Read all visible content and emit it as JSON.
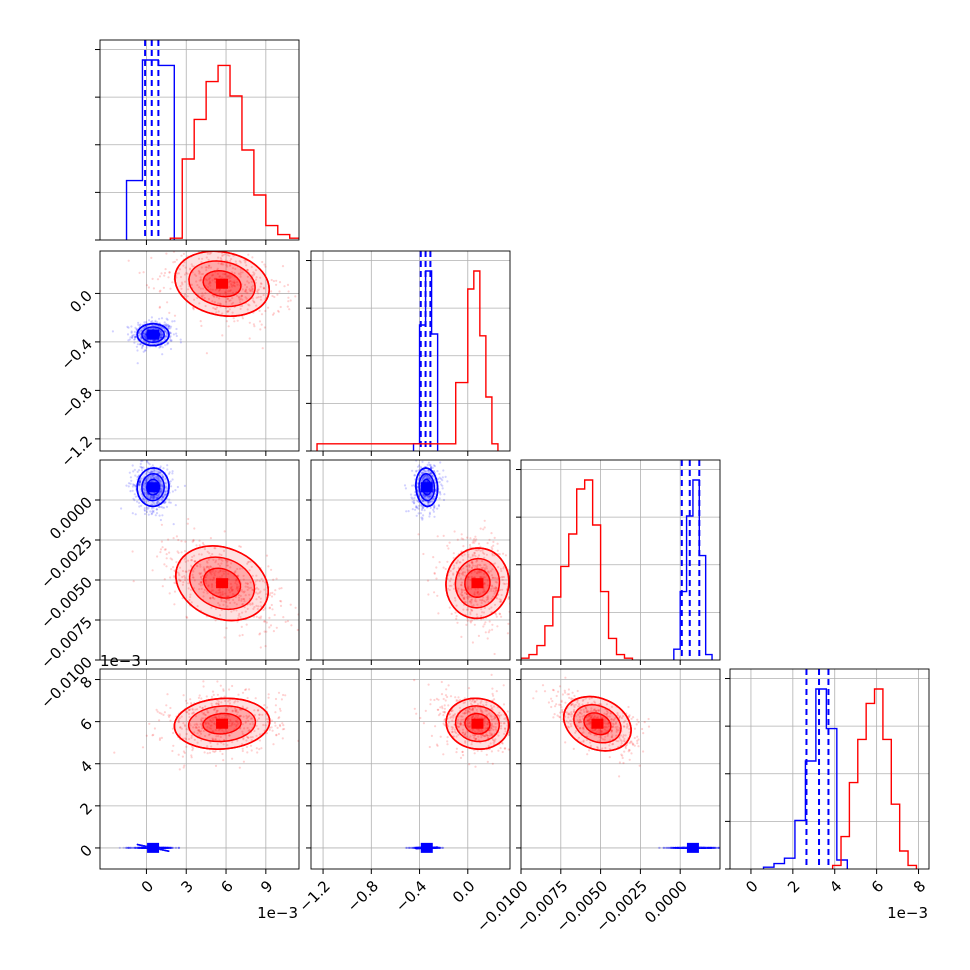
{
  "chart_data": {
    "type": "corner",
    "grid": true,
    "series": [
      {
        "color": "#0000ff",
        "means": {
          "p0": 0.0005,
          "p1": -0.34,
          "p2": 0.0008,
          "p3": 0.0034
        },
        "sds": {
          "p0": 0.0006,
          "p1": 0.045,
          "p2": 0.0006,
          "p3": 0.0006
        },
        "histograms": {
          "p0": {
            "edges": [
              -0.0015,
              -0.0003,
              0.0009,
              0.0021
            ],
            "counts": [
              0.33,
              1.0,
              0.97
            ]
          },
          "p1": {
            "edges": [
              -0.45,
              -0.4,
              -0.35,
              -0.3,
              -0.25
            ],
            "counts": [
              0.04,
              0.7,
              1.0,
              0.65
            ]
          },
          "p2": {
            "edges": [
              -0.0004,
              0.0,
              0.0004,
              0.0008,
              0.0012,
              0.0016,
              0.002
            ],
            "counts": [
              0.06,
              0.38,
              0.8,
              1.0,
              0.58,
              0.03
            ]
          },
          "p3": {
            "edges": [
              0.6,
              1.1,
              1.6,
              2.1,
              2.6,
              3.1,
              3.6,
              4.1,
              4.6
            ],
            "counts": [
              0.01,
              0.03,
              0.06,
              0.27,
              0.6,
              1.0,
              0.78,
              0.05
            ]
          }
        },
        "quantiles": {
          "p0": [
            -0.0001,
            0.0004,
            0.0009
          ],
          "p1": [
            -0.39,
            -0.35,
            -0.31
          ],
          "p2": [
            0.0001,
            0.0006,
            0.0012
          ],
          "p3": [
            2.65,
            3.25,
            3.7
          ]
        }
      },
      {
        "color": "#ff0000",
        "means": {
          "p0": 0.0057,
          "p1": 0.08,
          "p2": -0.0052,
          "p3": 5.9
        },
        "sds": {
          "p0": 0.0018,
          "p1": 0.13,
          "p2": 0.0011,
          "p3": 0.6
        },
        "histograms": {
          "p0": {
            "edges": [
              0.0018,
              0.0027,
              0.0036,
              0.0045,
              0.0054,
              0.0063,
              0.0072,
              0.0081,
              0.009,
              0.0099,
              0.0108,
              0.0117
            ],
            "counts": [
              0.01,
              0.45,
              0.67,
              0.88,
              0.97,
              0.8,
              0.5,
              0.25,
              0.08,
              0.03,
              0.01
            ]
          },
          "p1": {
            "edges": [
              -1.25,
              -0.1,
              0.0,
              0.05,
              0.1,
              0.15,
              0.2,
              0.25
            ],
            "counts": [
              0.04,
              0.38,
              0.9,
              1.0,
              0.64,
              0.3,
              0.04
            ]
          },
          "p2": {
            "edges": [
              -0.01,
              -0.0095,
              -0.009,
              -0.0085,
              -0.008,
              -0.0075,
              -0.007,
              -0.0065,
              -0.006,
              -0.0055,
              -0.005,
              -0.0045,
              -0.004,
              -0.0035,
              -0.003
            ],
            "counts": [
              0.01,
              0.03,
              0.08,
              0.19,
              0.35,
              0.52,
              0.7,
              0.95,
              1.0,
              0.75,
              0.38,
              0.12,
              0.03,
              0.01
            ]
          },
          "p3": {
            "edges": [
              3.9,
              4.3,
              4.7,
              5.1,
              5.5,
              5.9,
              6.3,
              6.7,
              7.1,
              7.5,
              7.9
            ],
            "counts": [
              0.02,
              0.18,
              0.48,
              0.72,
              0.92,
              1.0,
              0.72,
              0.36,
              0.1,
              0.02
            ]
          }
        }
      }
    ],
    "params": [
      {
        "id": "p0",
        "range": [
          -0.0035,
          0.0115
        ],
        "ticks": [
          0,
          0.003,
          0.006,
          0.009
        ],
        "tick_labels": [
          "0",
          "3",
          "6",
          "9"
        ],
        "offset_label": "1e−3"
      },
      {
        "id": "p1",
        "range": [
          -1.3,
          0.35
        ],
        "ticks": [
          -1.2,
          -0.8,
          -0.4,
          0.0
        ],
        "tick_labels": [
          "−1.2",
          "−0.8",
          "−0.4",
          "0.0"
        ],
        "offset_label": ""
      },
      {
        "id": "p2",
        "range": [
          -0.01,
          0.0025
        ],
        "ticks": [
          -0.01,
          -0.0075,
          -0.005,
          -0.0025,
          0.0
        ],
        "tick_labels": [
          "−0.0100",
          "−0.0075",
          "−0.0050",
          "−0.0025",
          "0.0000"
        ],
        "offset_label": ""
      },
      {
        "id": "p3",
        "range": [
          -1.0,
          8.5
        ],
        "ticks": [
          0,
          2,
          4,
          6,
          8
        ],
        "tick_labels": [
          "0",
          "2",
          "4",
          "6",
          "8"
        ],
        "offset_label": "1e−3"
      }
    ]
  }
}
